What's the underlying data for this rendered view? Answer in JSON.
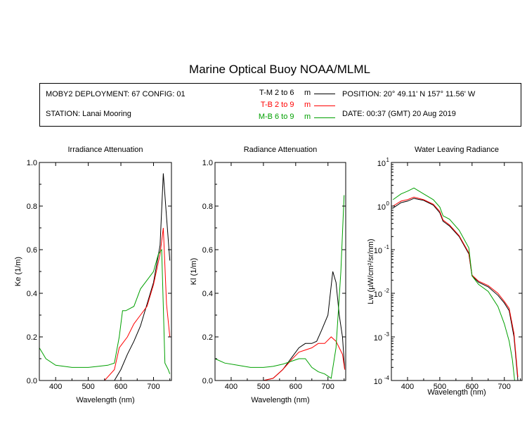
{
  "title": "Marine Optical Buoy NOAA/MLML",
  "info": {
    "deployment": "MOBY2 DEPLOYMENT: 67 CONFIG: 01",
    "station": "STATION: Lanai Mooring",
    "position": "POSITION: 20° 49.11' N   157° 11.56' W",
    "date": "DATE: 00:37 (GMT) 20 Aug 2019"
  },
  "legend": [
    {
      "code": "T-M",
      "range": "2 to 6",
      "unit": "m",
      "color": "#000000"
    },
    {
      "code": "T-B",
      "range": "2 to 9",
      "unit": "m",
      "color": "#ff0000"
    },
    {
      "code": "M-B",
      "range": "6 to 9",
      "unit": "m",
      "color": "#00a000"
    }
  ],
  "chart_data": [
    {
      "type": "line",
      "title": "Irradiance Attenuation",
      "xlabel": "Wavelength (nm)",
      "ylabel": "Ke  (1/m)",
      "xlim": [
        350,
        755
      ],
      "ylim": [
        0,
        1
      ],
      "xticks": [
        "400",
        "500",
        "600",
        "700"
      ],
      "yticks": [
        "0.0",
        "0.2",
        "0.4",
        "0.6",
        "0.8",
        "1.0"
      ],
      "series": [
        {
          "name": "T-M",
          "color": "#000000",
          "x": [
            580,
            600,
            620,
            640,
            660,
            680,
            700,
            720,
            730,
            740,
            750
          ],
          "y": [
            0.0,
            0.05,
            0.12,
            0.18,
            0.25,
            0.35,
            0.45,
            0.62,
            0.95,
            0.75,
            0.55
          ]
        },
        {
          "name": "T-B",
          "color": "#ff0000",
          "x": [
            350,
            400,
            450,
            500,
            550,
            580,
            595,
            600,
            620,
            640,
            660,
            680,
            700,
            720,
            730,
            740,
            750
          ],
          "y": [
            0.0,
            0.0,
            0.0,
            0.0,
            0.0,
            0.05,
            0.15,
            0.16,
            0.2,
            0.26,
            0.3,
            0.34,
            0.44,
            0.58,
            0.7,
            0.35,
            0.2
          ]
        },
        {
          "name": "M-B",
          "color": "#00a000",
          "x": [
            350,
            370,
            400,
            450,
            500,
            530,
            560,
            580,
            595,
            605,
            615,
            640,
            660,
            680,
            700,
            715,
            725,
            735,
            745,
            750
          ],
          "y": [
            0.15,
            0.1,
            0.07,
            0.06,
            0.06,
            0.065,
            0.07,
            0.08,
            0.2,
            0.32,
            0.32,
            0.34,
            0.42,
            0.46,
            0.5,
            0.58,
            0.6,
            0.08,
            0.05,
            0.03
          ]
        }
      ]
    },
    {
      "type": "line",
      "title": "Radiance Attenuation",
      "xlabel": "Wavelength (nm)",
      "ylabel": "Kl  (1/m)",
      "xlim": [
        350,
        755
      ],
      "ylim": [
        0,
        1
      ],
      "xticks": [
        "400",
        "500",
        "600",
        "700"
      ],
      "yticks": [
        "0.0",
        "0.2",
        "0.4",
        "0.6",
        "0.8",
        "1.0"
      ],
      "series": [
        {
          "name": "T-M",
          "color": "#000000",
          "x": [
            450,
            500,
            530,
            560,
            590,
            610,
            630,
            650,
            665,
            680,
            700,
            715,
            725,
            735,
            745,
            752
          ],
          "y": [
            0.0,
            0.0,
            0.01,
            0.05,
            0.11,
            0.15,
            0.17,
            0.17,
            0.18,
            0.23,
            0.3,
            0.5,
            0.45,
            0.3,
            0.2,
            0.05
          ]
        },
        {
          "name": "T-B",
          "color": "#ff0000",
          "x": [
            450,
            500,
            530,
            560,
            590,
            610,
            630,
            650,
            670,
            690,
            710,
            725,
            735,
            745,
            752
          ],
          "y": [
            0.0,
            0.0,
            0.01,
            0.05,
            0.1,
            0.13,
            0.14,
            0.15,
            0.17,
            0.17,
            0.2,
            0.18,
            0.15,
            0.12,
            0.05
          ]
        },
        {
          "name": "M-B",
          "color": "#00a000",
          "x": [
            350,
            380,
            420,
            460,
            500,
            530,
            560,
            590,
            610,
            630,
            650,
            670,
            690,
            710,
            725,
            740,
            750
          ],
          "y": [
            0.1,
            0.08,
            0.07,
            0.06,
            0.06,
            0.065,
            0.075,
            0.09,
            0.1,
            0.1,
            0.06,
            0.04,
            0.03,
            0.01,
            0.15,
            0.5,
            0.85
          ]
        }
      ]
    },
    {
      "type": "line",
      "title": "Water Leaving Radiance",
      "xlabel": "Wavelength (nm)",
      "ylabel": "Lw  (µW/cm²/sr/nm)",
      "xscale": "linear",
      "yscale": "log",
      "xlim": [
        350,
        755
      ],
      "ylim": [
        0.0001,
        10
      ],
      "xticks": [
        "400",
        "500",
        "600",
        "700"
      ],
      "ytick_labels": [
        {
          "base": "10",
          "exp": "1",
          "value": 10
        },
        {
          "base": "10",
          "exp": "0",
          "value": 1
        },
        {
          "base": "10",
          "exp": "-1",
          "value": 0.1
        },
        {
          "base": "10",
          "exp": "-2",
          "value": 0.01
        },
        {
          "base": "10",
          "exp": "-3",
          "value": 0.001
        },
        {
          "base": "10",
          "exp": "-4",
          "value": 0.0001
        }
      ],
      "series": [
        {
          "name": "T-M",
          "color": "#000000",
          "x": [
            355,
            380,
            400,
            420,
            450,
            480,
            500,
            510,
            530,
            560,
            590,
            600,
            620,
            650,
            680,
            700,
            715,
            730,
            742
          ],
          "y": [
            0.9,
            1.2,
            1.3,
            1.5,
            1.35,
            1.05,
            0.7,
            0.45,
            0.35,
            0.2,
            0.08,
            0.025,
            0.018,
            0.014,
            0.009,
            0.006,
            0.004,
            0.001,
            0.0001
          ]
        },
        {
          "name": "T-B",
          "color": "#ff0000",
          "x": [
            355,
            380,
            400,
            420,
            450,
            480,
            500,
            510,
            530,
            560,
            590,
            600,
            620,
            650,
            680,
            700,
            715,
            730,
            742
          ],
          "y": [
            1.0,
            1.3,
            1.4,
            1.6,
            1.4,
            1.1,
            0.75,
            0.48,
            0.37,
            0.21,
            0.085,
            0.026,
            0.019,
            0.015,
            0.01,
            0.0065,
            0.0045,
            0.0012,
            0.00012
          ]
        },
        {
          "name": "M-B",
          "color": "#00a000",
          "x": [
            355,
            380,
            400,
            420,
            450,
            480,
            500,
            510,
            530,
            560,
            590,
            600,
            620,
            650,
            680,
            700,
            715,
            725,
            732
          ],
          "y": [
            1.4,
            1.9,
            2.2,
            2.6,
            1.9,
            1.4,
            0.95,
            0.6,
            0.5,
            0.28,
            0.11,
            0.025,
            0.016,
            0.011,
            0.005,
            0.002,
            0.0008,
            0.0003,
            0.0001
          ]
        }
      ]
    }
  ]
}
